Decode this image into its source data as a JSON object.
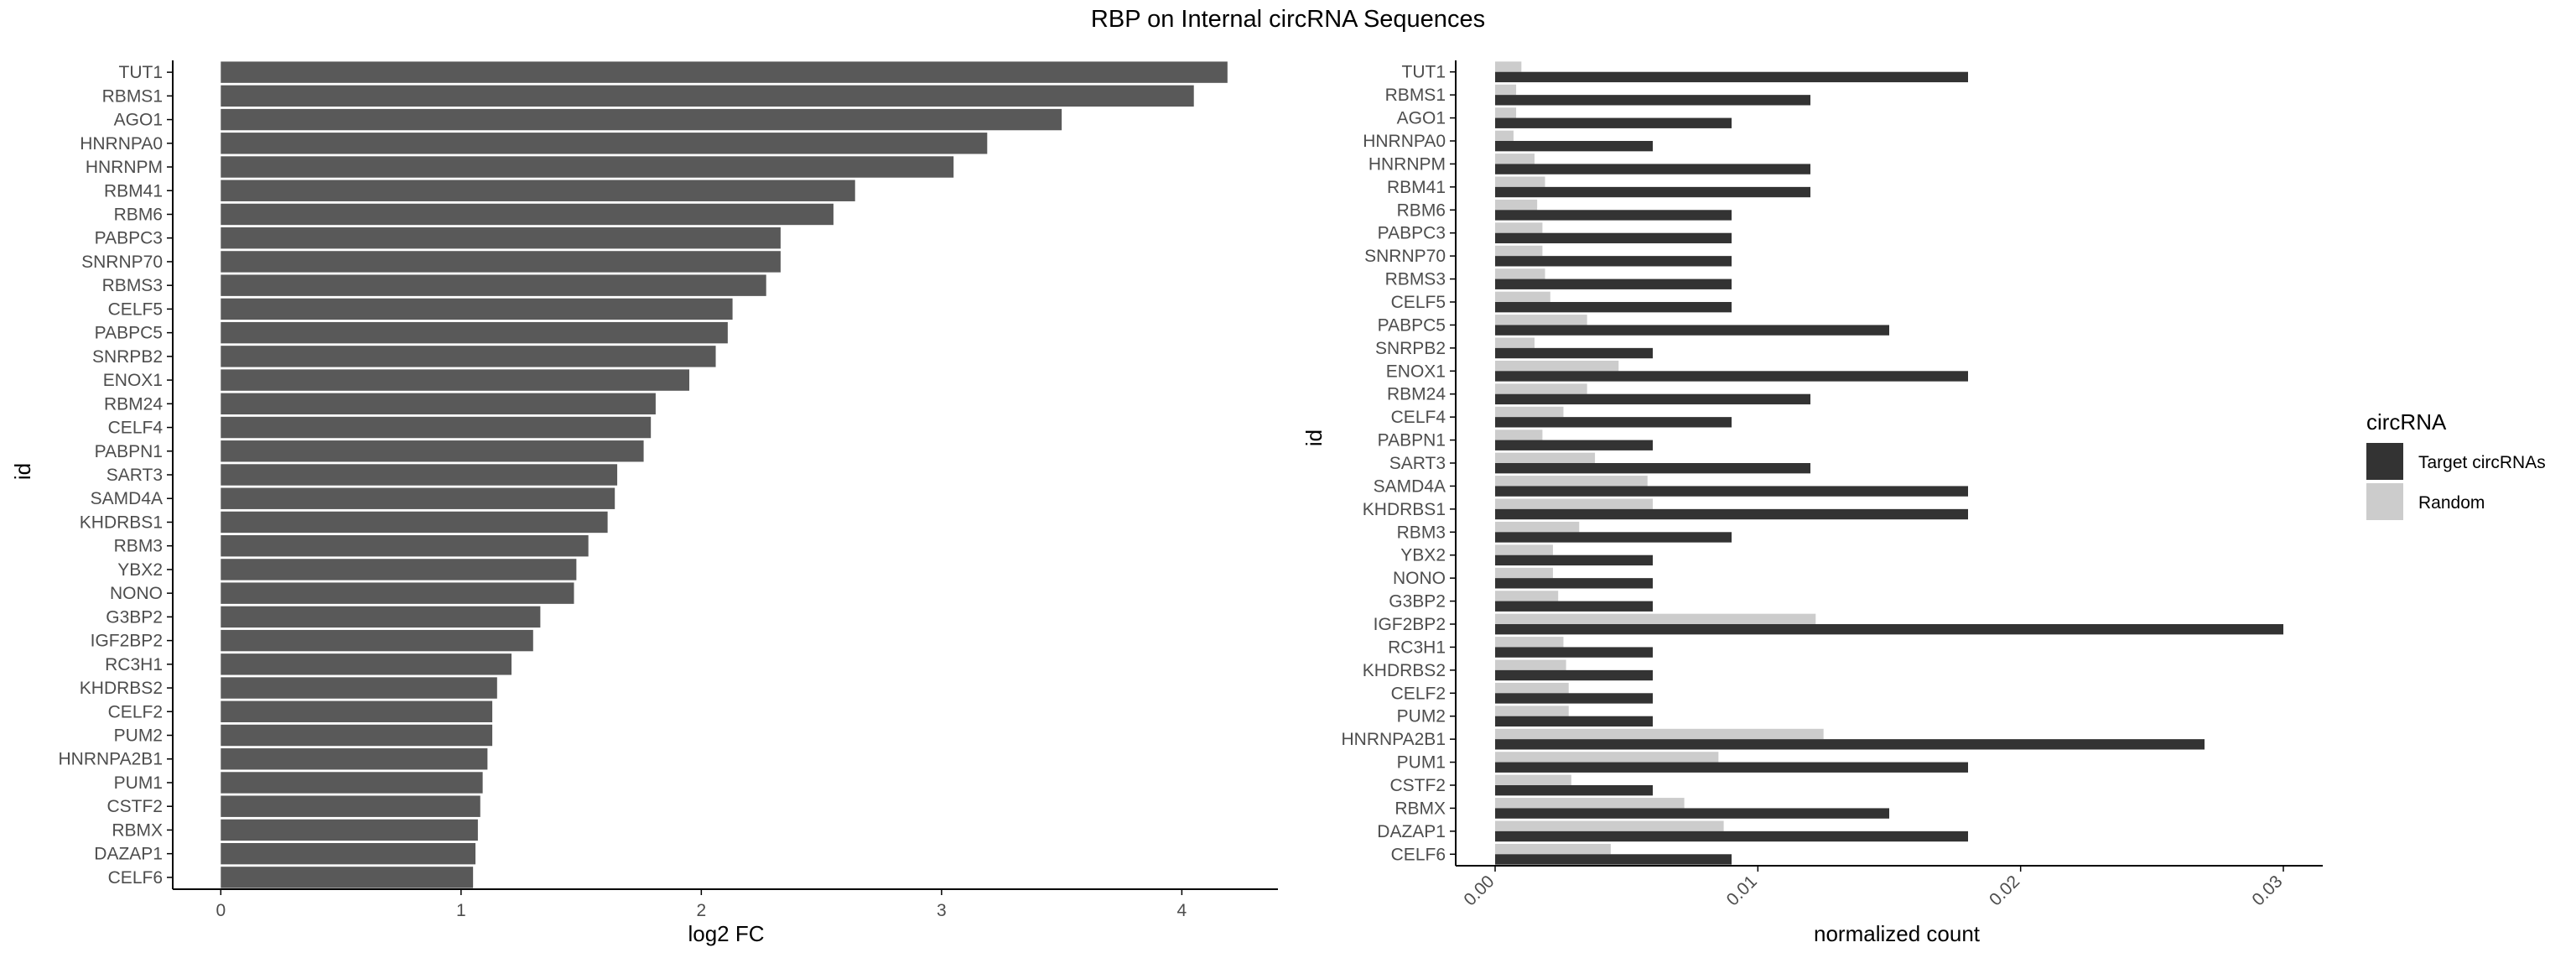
{
  "title": "RBP on Internal circRNA Sequences",
  "colors": {
    "fc_bar": "#595959",
    "target": "#333333",
    "random": "#cccccc",
    "axis": "#000000",
    "tick_text": "#4d4d4d"
  },
  "chart_data": [
    {
      "type": "bar",
      "orientation": "horizontal",
      "xlabel": "log2 FC",
      "ylabel": "id",
      "xlim": [
        -0.2,
        4.4
      ],
      "xticks": [
        "0",
        "1",
        "2",
        "3",
        "4"
      ],
      "grid": false,
      "categories": [
        "TUT1",
        "RBMS1",
        "AGO1",
        "HNRNPA0",
        "HNRNPM",
        "RBM41",
        "RBM6",
        "PABPC3",
        "SNRNP70",
        "RBMS3",
        "CELF5",
        "PABPC5",
        "SNRPB2",
        "ENOX1",
        "RBM24",
        "CELF4",
        "PABPN1",
        "SART3",
        "SAMD4A",
        "KHDRBS1",
        "RBM3",
        "YBX2",
        "NONO",
        "G3BP2",
        "IGF2BP2",
        "RC3H1",
        "KHDRBS2",
        "CELF2",
        "PUM2",
        "HNRNPA2B1",
        "PUM1",
        "CSTF2",
        "RBMX",
        "DAZAP1",
        "CELF6"
      ],
      "values": [
        4.19,
        4.05,
        3.5,
        3.19,
        3.05,
        2.64,
        2.55,
        2.33,
        2.33,
        2.27,
        2.13,
        2.11,
        2.06,
        1.95,
        1.81,
        1.79,
        1.76,
        1.65,
        1.64,
        1.61,
        1.53,
        1.48,
        1.47,
        1.33,
        1.3,
        1.21,
        1.15,
        1.13,
        1.13,
        1.11,
        1.09,
        1.08,
        1.07,
        1.06,
        1.05
      ]
    },
    {
      "type": "bar",
      "orientation": "horizontal",
      "xlabel": "normalized count",
      "ylabel": "id",
      "xlim": [
        -0.0015,
        0.0315
      ],
      "xticks": [
        "0.00",
        "0.01",
        "0.02",
        "0.03"
      ],
      "grid": false,
      "categories": [
        "TUT1",
        "RBMS1",
        "AGO1",
        "HNRNPA0",
        "HNRNPM",
        "RBM41",
        "RBM6",
        "PABPC3",
        "SNRNP70",
        "RBMS3",
        "CELF5",
        "PABPC5",
        "SNRPB2",
        "ENOX1",
        "RBM24",
        "CELF4",
        "PABPN1",
        "SART3",
        "SAMD4A",
        "KHDRBS1",
        "RBM3",
        "YBX2",
        "NONO",
        "G3BP2",
        "IGF2BP2",
        "RC3H1",
        "KHDRBS2",
        "CELF2",
        "PUM2",
        "HNRNPA2B1",
        "PUM1",
        "CSTF2",
        "RBMX",
        "DAZAP1",
        "CELF6"
      ],
      "series": [
        {
          "name": "Target circRNAs",
          "values": [
            0.018,
            0.012,
            0.009,
            0.006,
            0.012,
            0.012,
            0.009,
            0.009,
            0.009,
            0.009,
            0.009,
            0.015,
            0.006,
            0.018,
            0.012,
            0.009,
            0.006,
            0.012,
            0.018,
            0.018,
            0.009,
            0.006,
            0.006,
            0.006,
            0.03,
            0.006,
            0.006,
            0.006,
            0.006,
            0.027,
            0.018,
            0.006,
            0.015,
            0.018,
            0.009
          ]
        },
        {
          "name": "Random",
          "values": [
            0.001,
            0.0008,
            0.0008,
            0.0007,
            0.0015,
            0.0019,
            0.0016,
            0.0018,
            0.0018,
            0.0019,
            0.0021,
            0.0035,
            0.0015,
            0.0047,
            0.0035,
            0.0026,
            0.0018,
            0.0038,
            0.0058,
            0.006,
            0.0032,
            0.0022,
            0.0022,
            0.0024,
            0.0122,
            0.0026,
            0.0027,
            0.0028,
            0.0028,
            0.0125,
            0.0085,
            0.0029,
            0.0072,
            0.0087,
            0.0044
          ]
        }
      ],
      "legend": {
        "title": "circRNA",
        "placement": "right"
      }
    }
  ]
}
